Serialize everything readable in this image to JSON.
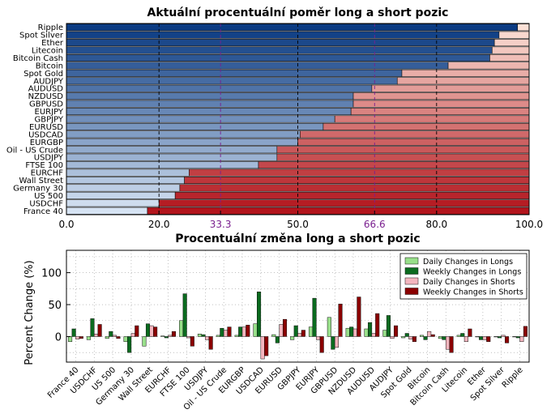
{
  "chart_data": [
    {
      "type": "bar",
      "orientation": "horizontal",
      "stacked": true,
      "title": "Aktuální procentuální poměr long a short pozic",
      "xlim": [
        0,
        100
      ],
      "xticks": [
        "0.0",
        "20.0",
        "33.3",
        "50.0",
        "66.6",
        "80.0",
        "100.0"
      ],
      "xtick_values": [
        0,
        20,
        33.3,
        50,
        66.6,
        80,
        100
      ],
      "highlight_ticks": [
        33.3,
        66.6
      ],
      "grid": true,
      "categories": [
        "Ripple",
        "Spot Silver",
        "Ether",
        "Litecoin",
        "Bitcoin Cash",
        "Bitcoin",
        "Spot Gold",
        "AUDJPY",
        "AUDUSD",
        "NZDUSD",
        "GBPUSD",
        "EURJPY",
        "GBPJPY",
        "EURUSD",
        "USDCAD",
        "EURGBP",
        "Oil - US Crude",
        "USDJPY",
        "FTSE 100",
        "EURCHF",
        "Wall Street",
        "Germany 30",
        "US 500",
        "USDCHF",
        "France 40"
      ],
      "long_pct": [
        97.5,
        93.5,
        92.5,
        92,
        91.5,
        82.5,
        72.5,
        71.5,
        66,
        62,
        62,
        61.5,
        58,
        55.5,
        50.5,
        50,
        45.5,
        45.5,
        41.5,
        26.5,
        25.5,
        24.5,
        23.5,
        20,
        17.5
      ]
    },
    {
      "type": "bar",
      "title": "Procentuální změna long a short pozic",
      "ylabel": "Percent Change (%)",
      "ylim": [
        -40,
        135
      ],
      "yticks": [
        0,
        50,
        100
      ],
      "grid": true,
      "legend_position": "top-right",
      "categories": [
        "France 40",
        "USDCHF",
        "US 500",
        "Germany 30",
        "Wall Street",
        "EURCHF",
        "FTSE 100",
        "USDJPY",
        "Oil - US Crude",
        "EURGBP",
        "USDCAD",
        "EURUSD",
        "GBPJPY",
        "EURJPY",
        "GBPUSD",
        "NZDUSD",
        "AUDUSD",
        "AUDJPY",
        "Spot Gold",
        "Bitcoin",
        "Bitcoin Cash",
        "Litecoin",
        "Ether",
        "Spot Silver",
        "Ripple"
      ],
      "series": [
        {
          "name": "Daily Changes in Longs",
          "color": "#98df8a",
          "values": [
            -8,
            -5,
            -3,
            -8,
            -15,
            1,
            25,
            4,
            2,
            2,
            20,
            3,
            -5,
            15,
            30,
            13,
            12,
            10,
            -2,
            2,
            -3,
            2,
            0,
            0,
            0
          ]
        },
        {
          "name": "Weekly Changes in Longs",
          "color": "#0b6b1f",
          "values": [
            12,
            28,
            8,
            -25,
            20,
            -2,
            67,
            3,
            13,
            15,
            70,
            -10,
            17,
            60,
            -20,
            15,
            22,
            33,
            5,
            -5,
            -5,
            5,
            -5,
            -2,
            -2
          ]
        },
        {
          "name": "Daily Changes in Shorts",
          "color": "#f4b6bf",
          "values": [
            -4,
            4,
            2,
            5,
            17,
            2,
            -2,
            -5,
            10,
            15,
            -35,
            19,
            5,
            -5,
            -17,
            12,
            5,
            -3,
            -4,
            8,
            -20,
            -8,
            -5,
            2,
            -8
          ]
        },
        {
          "name": "Weekly Changes in Shorts",
          "color": "#8b0000",
          "values": [
            -3,
            19,
            -3,
            17,
            15,
            8,
            -15,
            -20,
            15,
            18,
            -30,
            27,
            10,
            -25,
            51,
            62,
            36,
            17,
            -8,
            3,
            -25,
            12,
            -8,
            -10,
            16
          ]
        }
      ]
    }
  ]
}
